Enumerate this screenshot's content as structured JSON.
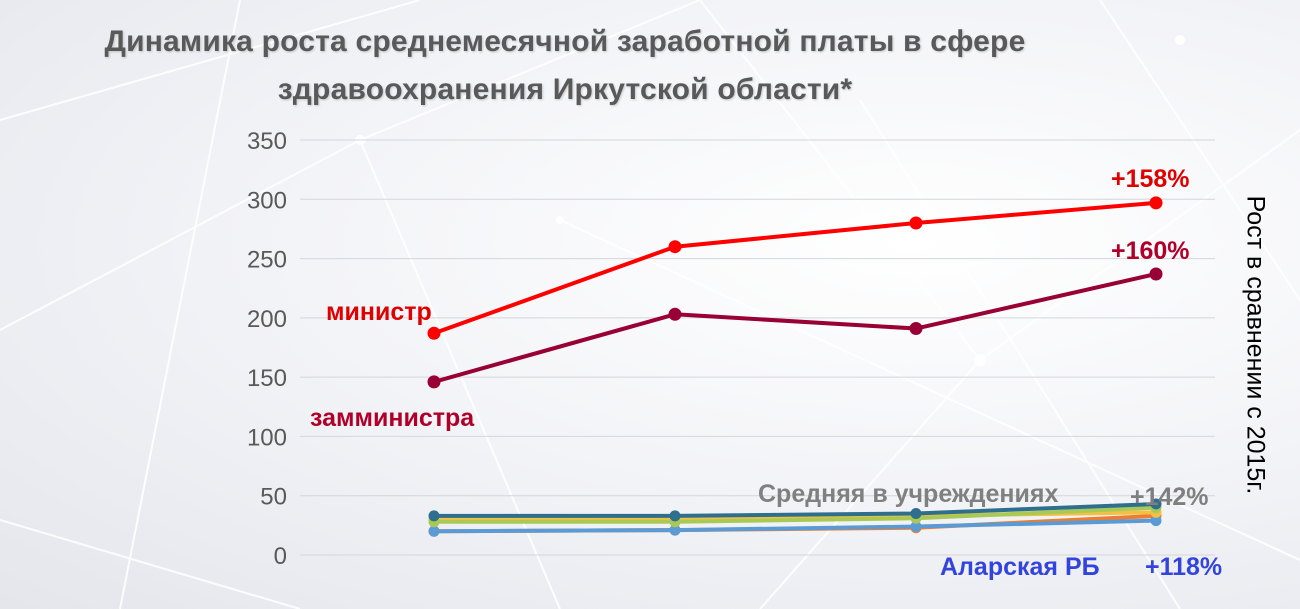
{
  "title": {
    "line1": "Динамика роста среднемесячной заработной платы в сфере",
    "line2": "здравоохранения Иркутской области*"
  },
  "side_label": "Рост в сравнении с 2015г.",
  "chart_data": {
    "type": "line",
    "title": "Динамика роста среднемесячной заработной платы в сфере здравоохранения Иркутской области*",
    "ylim": [
      0,
      350
    ],
    "yticks": [
      0,
      50,
      100,
      150,
      200,
      250,
      300,
      350
    ],
    "grid": "horizontal",
    "points_per_series": 4,
    "series": [
      {
        "name": "министр",
        "values": [
          187,
          260,
          280,
          297
        ],
        "color": "#ff0000",
        "end_label": "+158%",
        "end_label_color": "#e00000"
      },
      {
        "name": "замминистра",
        "values": [
          146,
          203,
          191,
          237
        ],
        "color": "#990033",
        "end_label": "+160%",
        "end_label_color": "#b0002a"
      },
      {
        "name": "Средняя в учреждениях",
        "values": [
          33,
          33,
          35,
          43
        ],
        "color": "#2e6f8e",
        "end_label": "+142%",
        "end_label_color": "#7f7f7f"
      },
      {
        "values": [
          28,
          28,
          31,
          40
        ],
        "color": "#a9c957"
      },
      {
        "values": [
          30,
          30,
          33,
          36
        ],
        "color": "#f2c043"
      },
      {
        "name": "Аларская РБ",
        "values": [
          20,
          21,
          24,
          29
        ],
        "color": "#5b9bd5",
        "end_label": "+118%",
        "end_label_color": "#3344dd"
      },
      {
        "values": [
          20,
          21,
          23,
          33
        ],
        "color": "#ed7d31"
      }
    ]
  }
}
